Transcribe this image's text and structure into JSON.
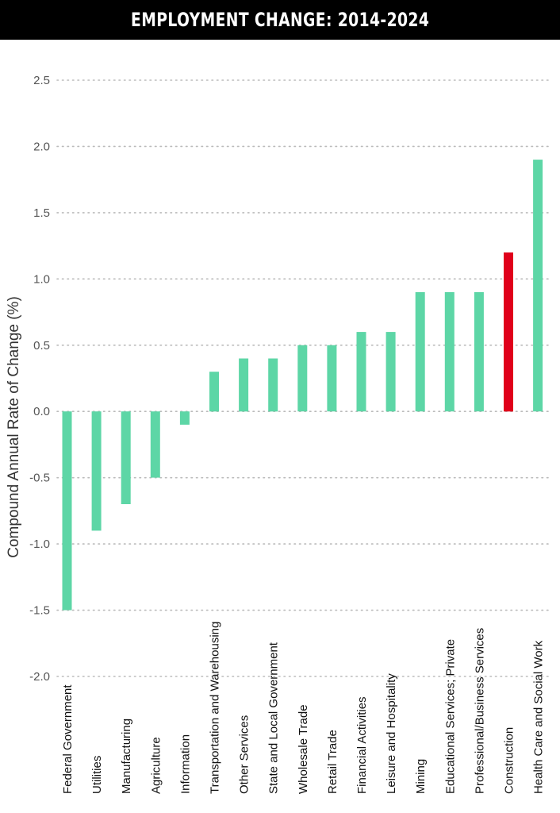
{
  "chart_data": {
    "type": "bar",
    "title": "EMPLOYMENT CHANGE: 2014-2024",
    "ylabel": "Compound Annual Rate of Change (%)",
    "xlabel": "",
    "ylim": [
      -2.0,
      2.5
    ],
    "yticks": [
      "2.5",
      "2.0",
      "1.5",
      "1.0",
      "0.5",
      "0.0",
      "-0.5",
      "-1.0",
      "-1.5",
      "-2.0"
    ],
    "ytick_values": [
      2.5,
      2.0,
      1.5,
      1.0,
      0.5,
      0.0,
      -0.5,
      -1.0,
      -1.5,
      -2.0
    ],
    "grid": true,
    "categories": [
      "Federal Government",
      "Utilities",
      "Manufacturing",
      "Agriculture",
      "Information",
      "Transportation and Warehousing",
      "Other Services",
      "State and Local Government",
      "Wholesale Trade",
      "Retail Trade",
      "Financial Activities",
      "Leisure and Hospitality",
      "Mining",
      "Educational Services; Private",
      "Professional/Business Services",
      "Construction",
      "Health Care and Social Work"
    ],
    "values": [
      -1.5,
      -0.9,
      -0.7,
      -0.5,
      -0.1,
      0.3,
      0.4,
      0.4,
      0.5,
      0.5,
      0.6,
      0.6,
      0.9,
      0.9,
      0.9,
      1.2,
      1.9
    ],
    "highlight_index": 15,
    "colors": {
      "bar": "#5dd6a6",
      "highlight": "#e0001b",
      "grid": "#bbbbbb",
      "title_bg": "#000000"
    }
  }
}
